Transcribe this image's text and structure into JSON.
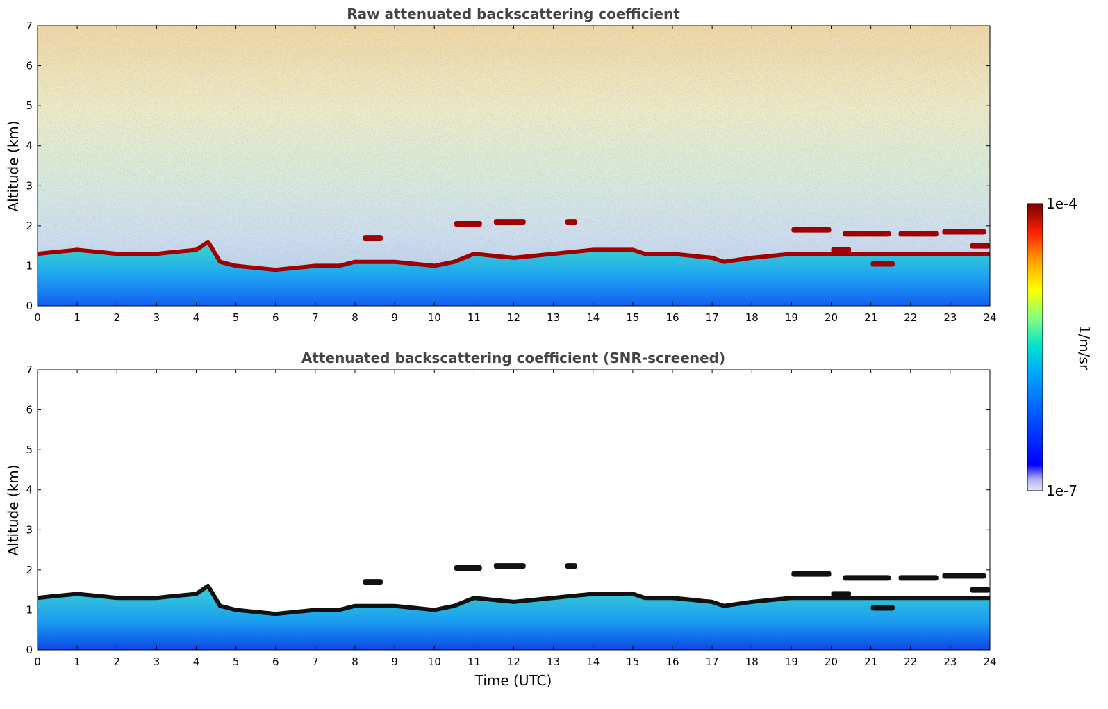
{
  "chart_data": [
    {
      "type": "heatmap",
      "title": "Raw attenuated backscattering coefficient",
      "xlabel": "",
      "ylabel": "Altitude (km)",
      "xlim": [
        0,
        24
      ],
      "ylim": [
        0,
        7
      ],
      "x_ticks": [
        "0",
        "1",
        "2",
        "3",
        "4",
        "5",
        "6",
        "7",
        "8",
        "9",
        "10",
        "11",
        "12",
        "13",
        "14",
        "15",
        "16",
        "17",
        "18",
        "19",
        "20",
        "21",
        "22",
        "23",
        "24"
      ],
      "y_ticks": [
        "0",
        "1",
        "2",
        "3",
        "4",
        "5",
        "6",
        "7"
      ],
      "cloud_base_km": {
        "x": [
          0,
          1,
          2,
          3,
          4,
          4.3,
          4.6,
          5,
          6,
          7,
          7.6,
          8,
          9,
          10,
          10.5,
          11,
          12,
          13,
          14,
          15,
          15.3,
          16,
          17,
          17.3,
          18,
          19,
          19.5
        ],
        "y": [
          1.3,
          1.4,
          1.3,
          1.3,
          1.4,
          1.6,
          1.1,
          1.0,
          0.9,
          1.0,
          1.0,
          1.1,
          1.1,
          1.0,
          1.1,
          1.3,
          1.2,
          1.3,
          1.4,
          1.4,
          1.3,
          1.3,
          1.2,
          1.1,
          1.2,
          1.3,
          1.3
        ]
      },
      "cloud_layers_km": [
        {
          "x": [
            8.2,
            8.7
          ],
          "y": 1.7
        },
        {
          "x": [
            10.5,
            11.2
          ],
          "y": 2.05
        },
        {
          "x": [
            11.5,
            12.3
          ],
          "y": 2.1
        },
        {
          "x": [
            13.3,
            13.6
          ],
          "y": 2.1
        },
        {
          "x": [
            19.0,
            20.0
          ],
          "y": 1.9
        },
        {
          "x": [
            20.3,
            21.5
          ],
          "y": 1.8
        },
        {
          "x": [
            20.0,
            20.5
          ],
          "y": 1.4
        },
        {
          "x": [
            21.0,
            21.6
          ],
          "y": 1.05
        },
        {
          "x": [
            21.7,
            22.7
          ],
          "y": 1.8
        },
        {
          "x": [
            22.8,
            23.9
          ],
          "y": 1.85
        },
        {
          "x": [
            23.5,
            24.0
          ],
          "y": 1.5
        }
      ]
    },
    {
      "type": "heatmap",
      "title": "Attenuated backscattering coefficient (SNR-screened)",
      "xlabel": "Time (UTC)",
      "ylabel": "Altitude (km)",
      "xlim": [
        0,
        24
      ],
      "ylim": [
        0,
        7
      ],
      "x_ticks": [
        "0",
        "1",
        "2",
        "3",
        "4",
        "5",
        "6",
        "7",
        "8",
        "9",
        "10",
        "11",
        "12",
        "13",
        "14",
        "15",
        "16",
        "17",
        "18",
        "19",
        "20",
        "21",
        "22",
        "23",
        "24"
      ],
      "y_ticks": [
        "0",
        "1",
        "2",
        "3",
        "4",
        "5",
        "6",
        "7"
      ]
    }
  ],
  "colorbar": {
    "max_label": "1e-4",
    "min_label": "1e-7",
    "label": "1/m/sr",
    "colors": [
      "#e6e6fa",
      "#b0b0f0",
      "#0000ff",
      "#0050ff",
      "#00a0ff",
      "#00e0d0",
      "#80ff80",
      "#ffff00",
      "#ffa000",
      "#ff2000",
      "#a00000",
      "#7a0000"
    ]
  }
}
